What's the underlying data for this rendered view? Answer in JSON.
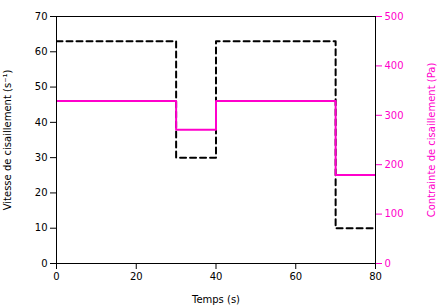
{
  "chart_data": {
    "type": "line",
    "xlabel": "Temps (s)",
    "ylabel": "Vitesse de cisaillement (s⁻¹)",
    "y2label": "Contrainte de cisaillement (Pa)",
    "xlim": [
      0,
      80
    ],
    "xticks": [
      0,
      20,
      40,
      60,
      80
    ],
    "ylim": [
      0,
      70
    ],
    "yticks": [
      0,
      10,
      20,
      30,
      40,
      50,
      60,
      70
    ],
    "y2lim": [
      0,
      500
    ],
    "y2ticks": [
      0,
      100,
      200,
      300,
      400,
      500
    ],
    "x": [
      0,
      30,
      30,
      40,
      40,
      70,
      70,
      80
    ],
    "series": [
      {
        "values": [
          63,
          63,
          30,
          30,
          63,
          63,
          10,
          10
        ],
        "color": "#000000",
        "line_style": "dashed"
      },
      {
        "values": [
          329,
          329,
          271,
          271,
          329,
          329,
          179,
          179
        ],
        "color": "#FF00CC",
        "line_style": "solid",
        "axis": "y2"
      }
    ]
  }
}
